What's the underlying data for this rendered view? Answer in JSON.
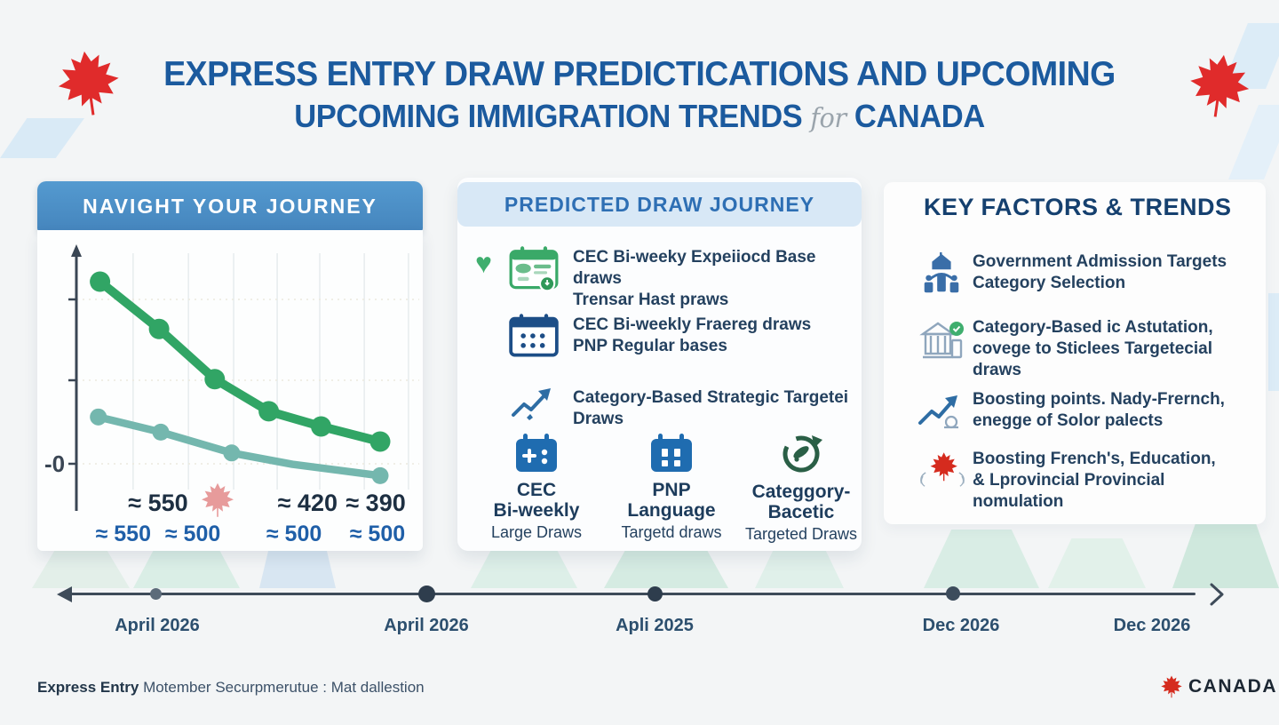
{
  "title": {
    "line1": "EXPRESS ENTRY DRAW PREDICTICATIONS AND UPCOMING",
    "line2_main": "UPCOMING IMMIGRATION TRENDS",
    "line2_for": "for",
    "line2_end": "CANADA"
  },
  "left_panel": {
    "header": "NAVIGHT YOUR JOURNEY"
  },
  "chart_data": {
    "type": "line",
    "title": "",
    "xlabel": "",
    "ylabel": "",
    "y_axis_label": "-0",
    "grid": true,
    "legend": "none",
    "ylim": [
      340,
      580
    ],
    "series": [
      {
        "name": "green-crs-trend",
        "color": "#31a565",
        "points": [
          [
            0.07,
            555
          ],
          [
            0.245,
            505
          ],
          [
            0.41,
            452
          ],
          [
            0.57,
            418
          ],
          [
            0.725,
            402
          ],
          [
            0.9,
            386
          ]
        ],
        "markers": [
          1,
          1,
          1,
          1,
          1,
          1
        ]
      },
      {
        "name": "teal-crs-trend",
        "color": "#74b7ae",
        "points": [
          [
            0.065,
            412
          ],
          [
            0.25,
            396
          ],
          [
            0.46,
            374
          ],
          [
            0.64,
            362
          ],
          [
            0.9,
            350
          ]
        ],
        "markers": [
          1,
          1,
          1,
          0,
          1
        ]
      }
    ],
    "annotations_dark": [
      {
        "text": "≈ 550",
        "x": 0.242,
        "leaf": true
      },
      {
        "text": "≈ 420",
        "x": 0.685,
        "leaf": false
      },
      {
        "text": "≈ 390",
        "x": 0.887,
        "leaf": false
      }
    ],
    "annotations_blue": [
      {
        "text": "≈ 550",
        "x": 0.139
      },
      {
        "text": "≈ 500",
        "x": 0.345
      },
      {
        "text": "≈ 500",
        "x": 0.645
      },
      {
        "text": "≈ 500",
        "x": 0.892
      }
    ]
  },
  "middle_panel": {
    "header": "PREDICTED DRAW JOURNEY",
    "items": [
      {
        "line1": "CEC Bi-weeky Expeiiocd Base draws",
        "line2": "Trensar Hast praws"
      },
      {
        "line1": "CEC Bi-weekly Fraereg draws",
        "line2": "PNP Regular bases"
      },
      {
        "line1": "Category-Based Strategic Targetei Draws",
        "line2": ""
      }
    ],
    "columns": [
      {
        "line1": "CEC",
        "line2": "Bi-weekly",
        "line3": "Large Draws"
      },
      {
        "line1": "PNP",
        "line2": "Language",
        "line3": "Targetd draws"
      },
      {
        "line1": "Categgory-",
        "line2": "Bacetic",
        "line3": "Targeted Draws"
      }
    ]
  },
  "right_panel": {
    "header": "KEY FACTORS & TRENDS",
    "items": [
      {
        "line1": "Government Admission Targets",
        "line2": "Category Selection",
        "line3": ""
      },
      {
        "line1": "Category-Based ic Astutation,",
        "line2": "covege to Sticlees Targetecial",
        "line3": "draws"
      },
      {
        "line1": "Boosting points. Nady-Frernch,",
        "line2": "enegge of Solor palects",
        "line3": ""
      },
      {
        "line1": "Boosting French's, Education,",
        "line2": "& Lprovincial Provincial",
        "line3": "nomulation"
      }
    ]
  },
  "timeline": {
    "labels": [
      "April 2026",
      "April 2026",
      "Apli 2025",
      "Dec 2026",
      "Dec 2026"
    ]
  },
  "footer": {
    "bold": "Express Entry",
    "rest": " Motember Securpmerutue : Mat dallestion",
    "logo_text": "CANADA"
  },
  "colors": {
    "title_blue": "#1b5a9e",
    "header_bar_blue": "#4a8ec6",
    "mid_header_bg": "#d8e8f6",
    "accent_blue": "#2e6fb4",
    "navy": "#15406f",
    "green_line": "#31a565",
    "teal_line": "#74b7ae",
    "maple_red": "#d52b1e",
    "text_dark": "#24415f"
  }
}
